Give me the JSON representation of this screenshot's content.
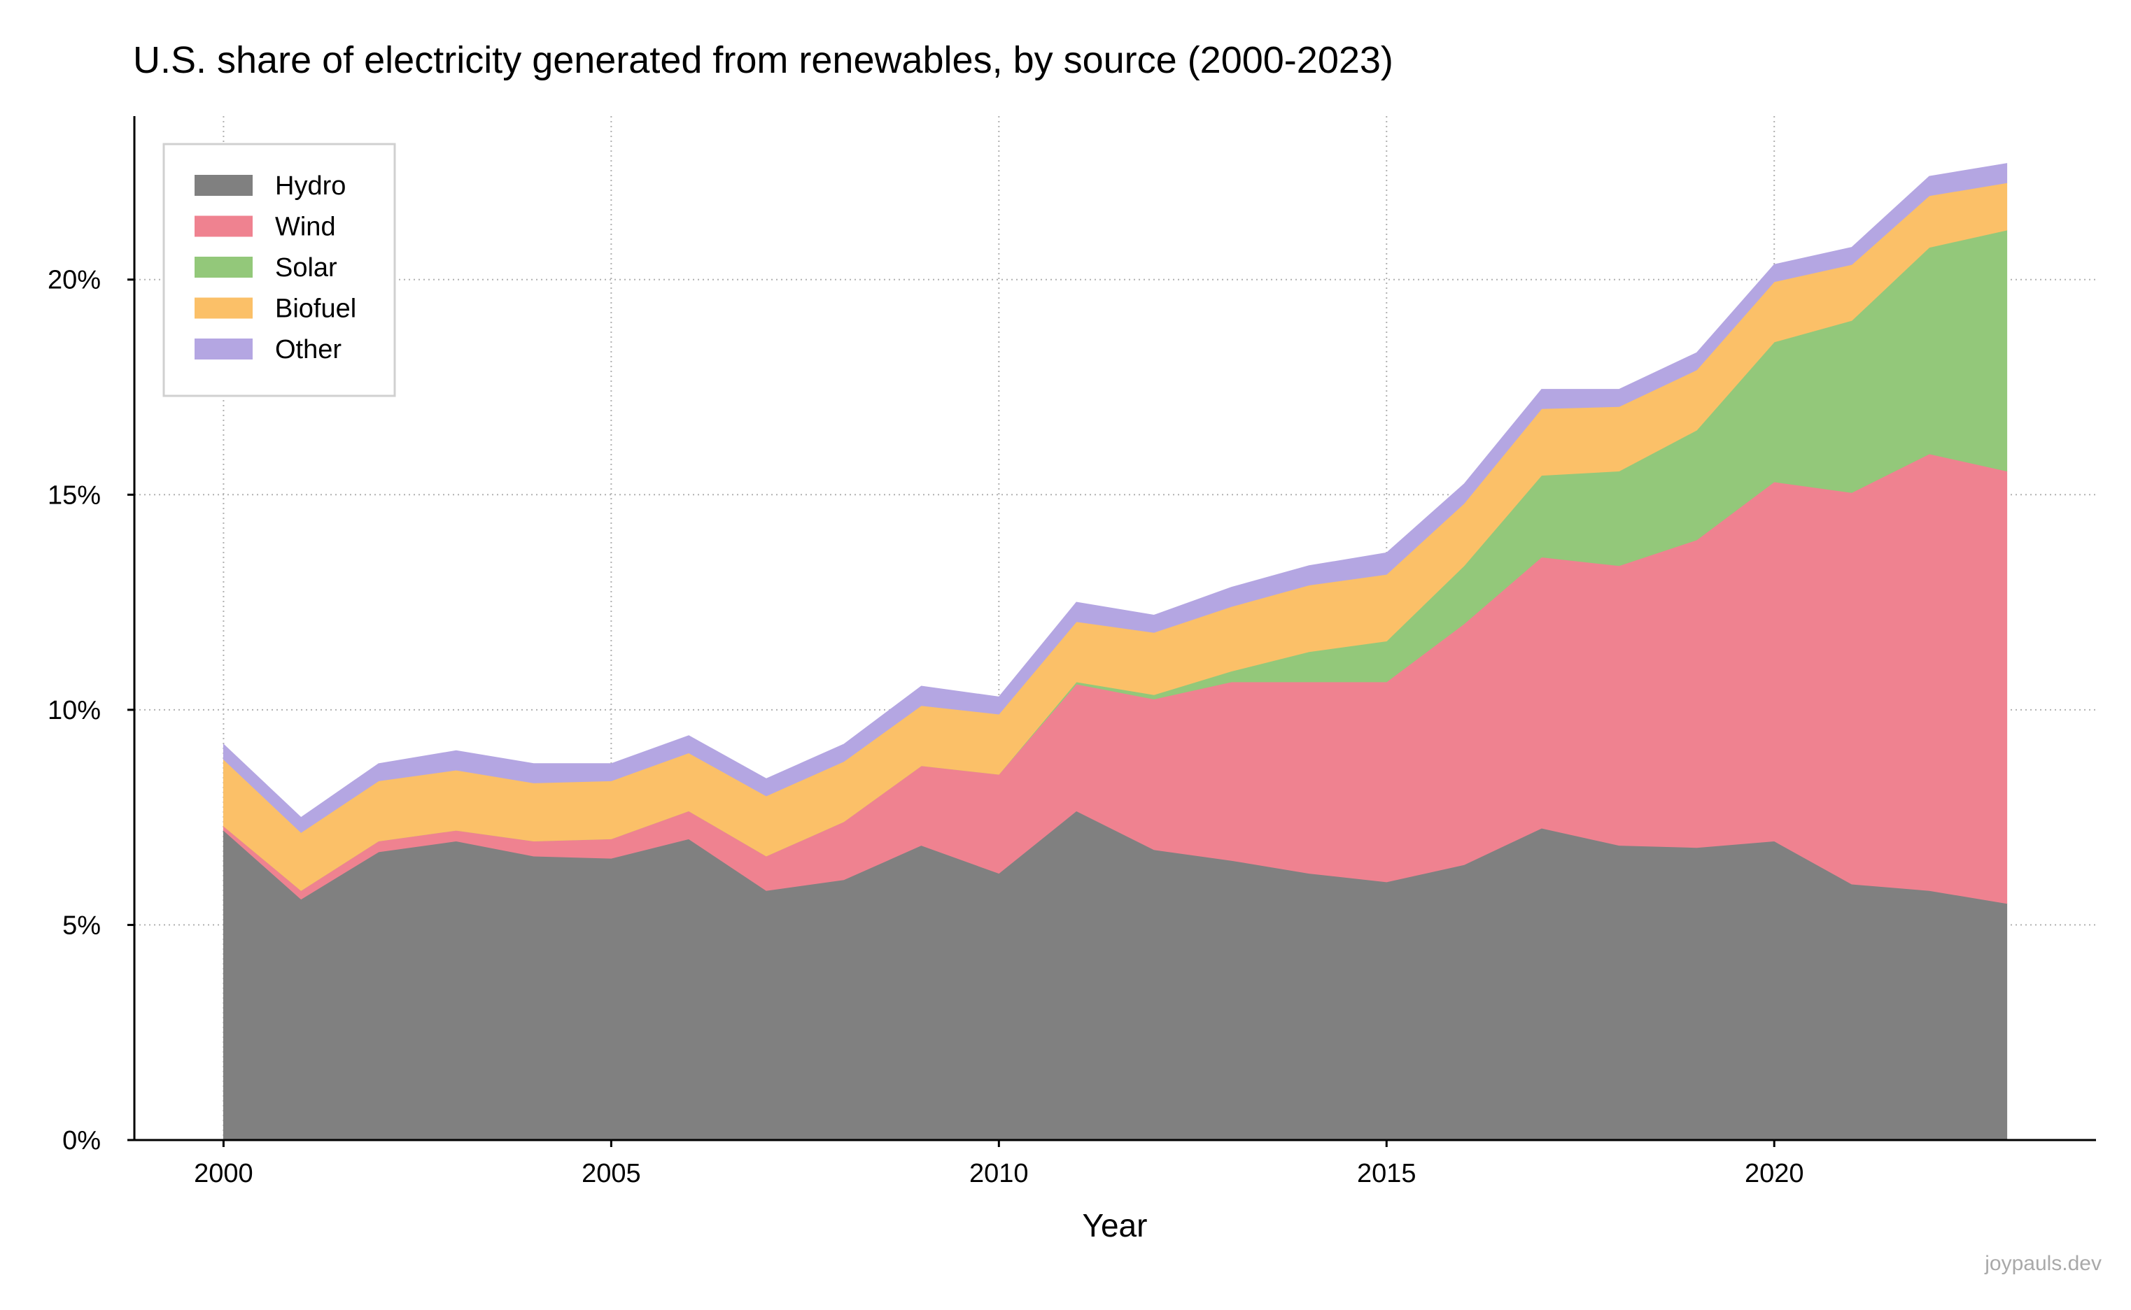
{
  "title": "U.S. share of electricity generated from renewables, by source (2000-2023)",
  "credit": "joypauls.dev",
  "chart_data": {
    "type": "area",
    "stacked": true,
    "title": "U.S. share of electricity generated from renewables, by source (2000-2023)",
    "xlabel": "Year",
    "ylabel": "",
    "xlim": [
      1998.85,
      2024.15
    ],
    "ylim": [
      0,
      23.8
    ],
    "x_ticks": [
      2000,
      2005,
      2010,
      2015,
      2020
    ],
    "x_tick_labels": [
      "2000",
      "2005",
      "2010",
      "2015",
      "2020"
    ],
    "y_ticks": [
      0,
      5,
      10,
      15,
      20
    ],
    "y_tick_labels": [
      "0%",
      "5%",
      "10%",
      "15%",
      "20%"
    ],
    "grid": true,
    "legend_position": "top-left",
    "x": [
      2000,
      2001,
      2002,
      2003,
      2004,
      2005,
      2006,
      2007,
      2008,
      2009,
      2010,
      2011,
      2012,
      2013,
      2014,
      2015,
      2016,
      2017,
      2018,
      2019,
      2020,
      2021,
      2022,
      2023
    ],
    "series": [
      {
        "name": "Hydro",
        "color": "#808080",
        "values": [
          7.2,
          5.6,
          6.7,
          6.95,
          6.6,
          6.55,
          7.0,
          5.8,
          6.05,
          6.85,
          6.2,
          7.65,
          6.75,
          6.5,
          6.2,
          6.0,
          6.4,
          7.25,
          6.85,
          6.8,
          6.95,
          5.95,
          5.8,
          5.5
        ]
      },
      {
        "name": "Wind",
        "color": "#ef8290",
        "values": [
          0.1,
          0.2,
          0.25,
          0.25,
          0.35,
          0.45,
          0.65,
          0.8,
          1.35,
          1.85,
          2.3,
          2.95,
          3.5,
          4.15,
          4.45,
          4.65,
          5.6,
          6.3,
          6.5,
          7.15,
          8.35,
          9.1,
          10.15,
          10.05
        ]
      },
      {
        "name": "Solar",
        "color": "#93c87a",
        "values": [
          0.0,
          0.0,
          0.0,
          0.0,
          0.0,
          0.0,
          0.0,
          0.0,
          0.0,
          0.0,
          0.0,
          0.05,
          0.1,
          0.25,
          0.7,
          0.95,
          1.35,
          1.9,
          2.2,
          2.55,
          3.25,
          4.0,
          4.8,
          5.6
        ]
      },
      {
        "name": "Biofuel",
        "color": "#fbc068",
        "values": [
          1.55,
          1.35,
          1.4,
          1.4,
          1.35,
          1.35,
          1.35,
          1.4,
          1.4,
          1.4,
          1.4,
          1.4,
          1.45,
          1.5,
          1.55,
          1.55,
          1.45,
          1.55,
          1.5,
          1.4,
          1.4,
          1.3,
          1.2,
          1.1
        ]
      },
      {
        "name": "Other",
        "color": "#b4a6e2",
        "values": [
          0.35,
          0.35,
          0.4,
          0.45,
          0.45,
          0.4,
          0.4,
          0.4,
          0.4,
          0.45,
          0.4,
          0.45,
          0.4,
          0.45,
          0.45,
          0.5,
          0.45,
          0.45,
          0.4,
          0.4,
          0.4,
          0.4,
          0.45,
          0.45
        ]
      }
    ]
  }
}
